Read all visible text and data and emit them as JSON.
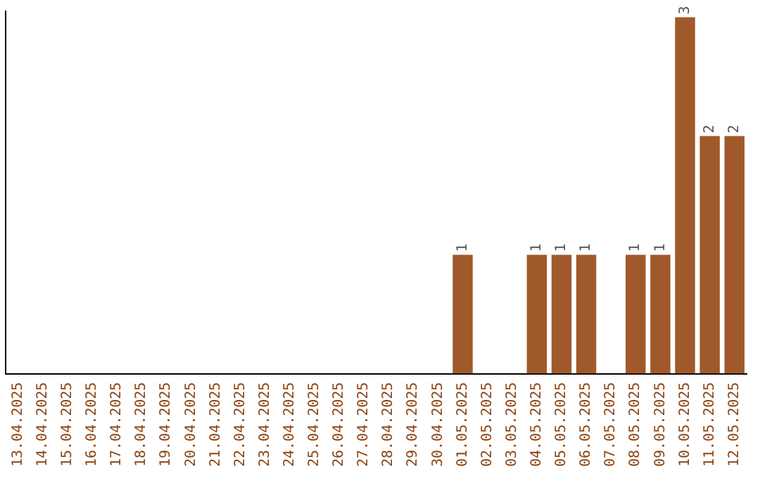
{
  "chart_data": {
    "type": "bar",
    "categories": [
      "13.04.2025",
      "14.04.2025",
      "15.04.2025",
      "16.04.2025",
      "17.04.2025",
      "18.04.2025",
      "19.04.2025",
      "20.04.2025",
      "21.04.2025",
      "22.04.2025",
      "23.04.2025",
      "24.04.2025",
      "25.04.2025",
      "26.04.2025",
      "27.04.2025",
      "28.04.2025",
      "29.04.2025",
      "30.04.2025",
      "01.05.2025",
      "02.05.2025",
      "03.05.2025",
      "04.05.2025",
      "05.05.2025",
      "06.05.2025",
      "07.05.2025",
      "08.05.2025",
      "09.05.2025",
      "10.05.2025",
      "11.05.2025",
      "12.05.2025"
    ],
    "values": [
      null,
      null,
      null,
      null,
      null,
      null,
      null,
      null,
      null,
      null,
      null,
      null,
      null,
      null,
      null,
      null,
      null,
      null,
      1,
      null,
      null,
      1,
      1,
      1,
      null,
      1,
      1,
      3,
      2,
      2
    ],
    "value_labels": [
      null,
      null,
      null,
      null,
      null,
      null,
      null,
      null,
      null,
      null,
      null,
      null,
      null,
      null,
      null,
      null,
      null,
      null,
      "1",
      null,
      null,
      "1",
      "1",
      "1",
      null,
      "1",
      "1",
      "3",
      "2",
      "2"
    ],
    "color": "#a0592a",
    "ylim": [
      0,
      3.05
    ],
    "tick_labels": "x",
    "grid": false,
    "legend": false
  }
}
